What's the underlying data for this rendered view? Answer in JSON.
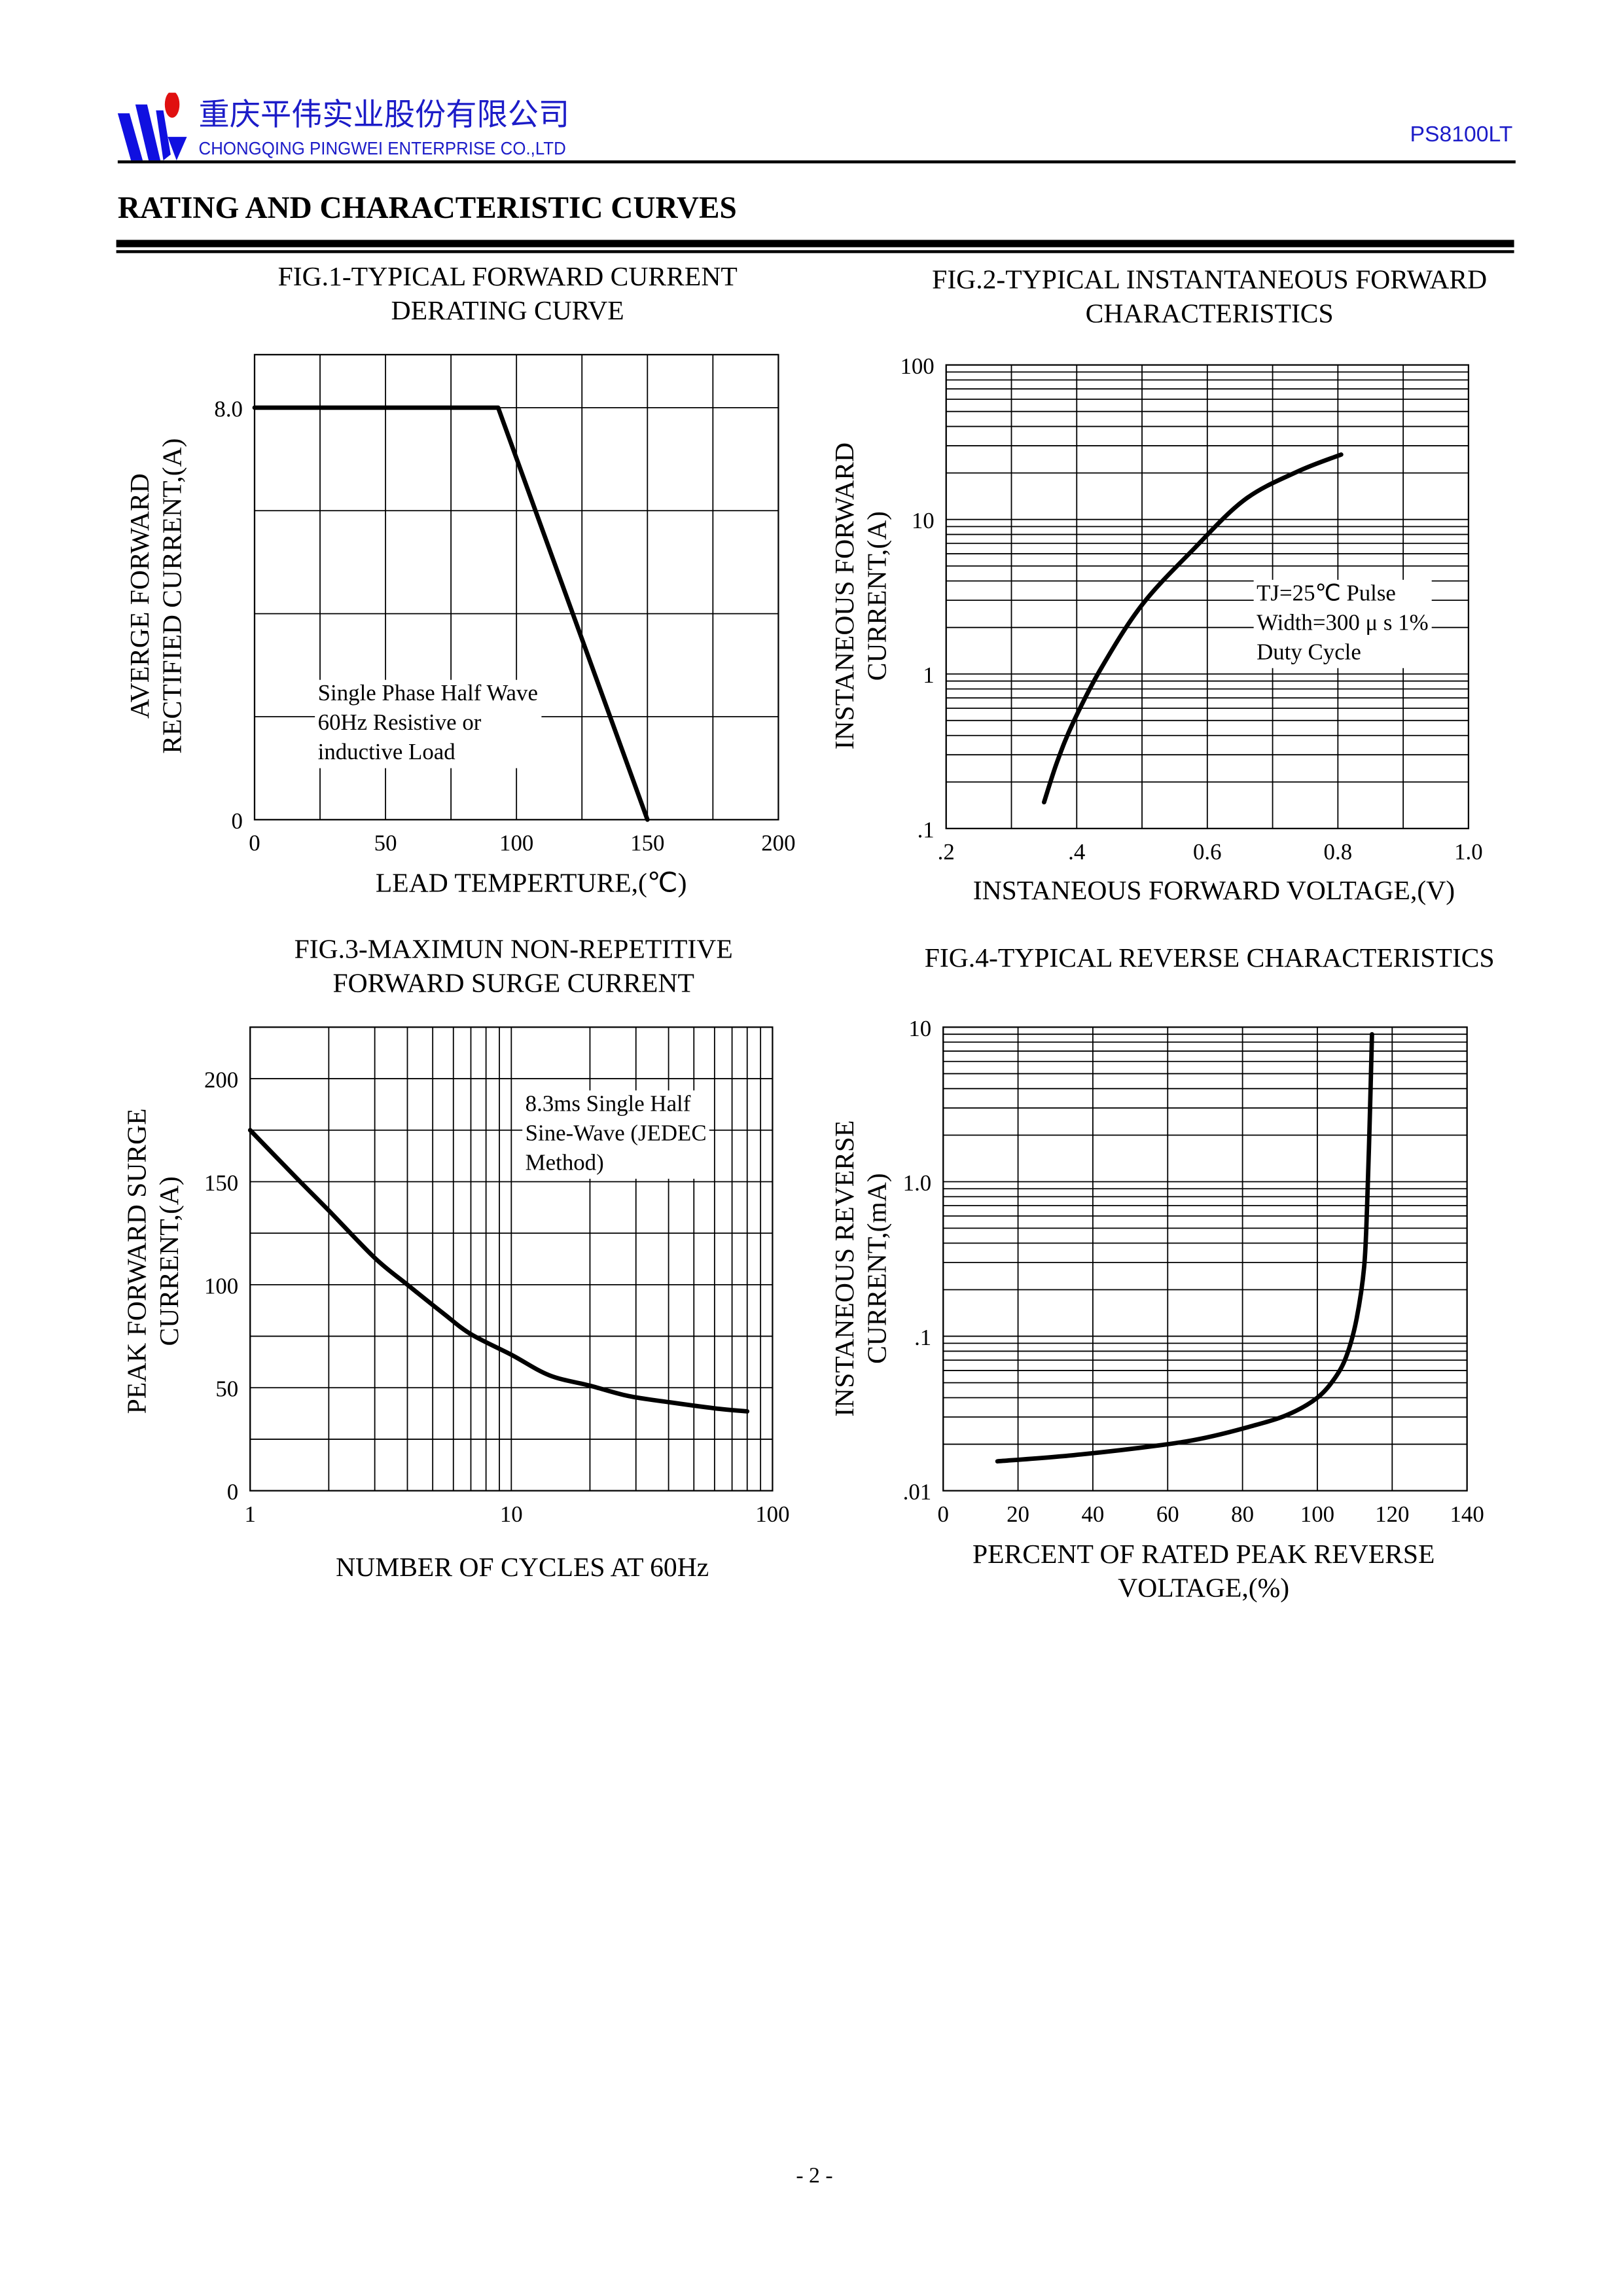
{
  "header": {
    "company_cn": "重庆平伟实业股份有限公司",
    "company_en": "CHONGQING PINGWEI ENTERPRISE CO.,LTD",
    "part_number": "PS8100LT",
    "colors": {
      "brand_blue": "#1c1cc8",
      "logo_red": "#e01010"
    }
  },
  "heading": "RATING AND CHARACTERISTIC CURVES",
  "footer": {
    "page": "- 2 -"
  },
  "chart_data": [
    {
      "type": "line",
      "title": [
        "FIG.1-TYPICAL FORWARD CURRENT",
        "DERATING CURVE"
      ],
      "xlabel": [
        "LEAD TEMPERTURE,(℃)"
      ],
      "ylabel": [
        "AVERGE FORWARD",
        "RECTIFIED CURRENT,(A)"
      ],
      "xscale": "linear",
      "yscale": "linear",
      "xlim": [
        0,
        200
      ],
      "ylim": [
        0,
        9.03
      ],
      "xgrid_step": 25,
      "ygrid_step": 2,
      "grid": true,
      "xticks": [
        {
          "v": 0,
          "label": "0"
        },
        {
          "v": 50,
          "label": "50"
        },
        {
          "v": 100,
          "label": "100"
        },
        {
          "v": 150,
          "label": "150"
        },
        {
          "v": 200,
          "label": "200"
        }
      ],
      "yticks": [
        {
          "v": 8,
          "label": "8.0"
        },
        {
          "v": 0,
          "label": "0"
        }
      ],
      "annotation": [
        "Single Phase Half Wave",
        "60Hz Resistive or",
        "inductive Load"
      ],
      "series": [
        {
          "name": "derating",
          "x": [
            0,
            93,
            150
          ],
          "y": [
            8.0,
            8.0,
            0
          ]
        }
      ]
    },
    {
      "type": "line",
      "title": [
        "FIG.2-TYPICAL INSTANTANEOUS FORWARD",
        "CHARACTERISTICS"
      ],
      "xlabel": [
        "INSTANEOUS FORWARD VOLTAGE,(V)"
      ],
      "ylabel": [
        "INSTANEOUS FORWARD",
        "CURRENT,(A)"
      ],
      "xscale": "linear",
      "yscale": "log",
      "xlim": [
        0.2,
        1.0
      ],
      "ylim": [
        0.1,
        100
      ],
      "xgrid_step": 0.1,
      "grid": true,
      "xticks": [
        {
          "v": 0.2,
          "label": ".2"
        },
        {
          "v": 0.4,
          "label": ".4"
        },
        {
          "v": 0.6,
          "label": "0.6"
        },
        {
          "v": 0.8,
          "label": "0.8"
        },
        {
          "v": 1.0,
          "label": "1.0"
        }
      ],
      "yticks": [
        {
          "v": 100,
          "label": "100"
        },
        {
          "v": 10,
          "label": "10"
        },
        {
          "v": 1,
          "label": "1"
        },
        {
          "v": 0.1,
          "label": ".1"
        }
      ],
      "annotation": [
        "TJ=25℃ Pulse",
        "Width=300 μ s 1%",
        "Duty Cycle"
      ],
      "series": [
        {
          "name": "forward",
          "x": [
            0.35,
            0.37,
            0.395,
            0.438,
            0.5,
            0.577,
            0.657,
            0.738,
            0.805
          ],
          "y": [
            0.148,
            0.27,
            0.49,
            1.1,
            2.8,
            6.3,
            13.4,
            20.4,
            26.3
          ]
        }
      ]
    },
    {
      "type": "line",
      "title": [
        "FIG.3-MAXIMUN NON-REPETITIVE",
        "FORWARD SURGE CURRENT"
      ],
      "xlabel": [
        "NUMBER OF CYCLES AT 60Hz"
      ],
      "ylabel": [
        "PEAK FORWARD SURGE",
        "CURRENT,(A)"
      ],
      "xscale": "log",
      "yscale": "linear",
      "xlim": [
        1,
        100
      ],
      "ylim": [
        0,
        225
      ],
      "ygrid_step": 25,
      "grid": true,
      "xticks": [
        {
          "v": 1,
          "label": "1"
        },
        {
          "v": 10,
          "label": "10"
        },
        {
          "v": 100,
          "label": "100"
        }
      ],
      "yticks": [
        {
          "v": 200,
          "label": "200"
        },
        {
          "v": 150,
          "label": "150"
        },
        {
          "v": 100,
          "label": "100"
        },
        {
          "v": 50,
          "label": "50"
        },
        {
          "v": 0,
          "label": "0"
        }
      ],
      "annotation": [
        "8.3ms Single Half",
        "Sine-Wave (JEDEC",
        "Method)"
      ],
      "series": [
        {
          "name": "surge",
          "x": [
            1,
            1.5,
            2,
            3,
            4,
            5.5,
            7,
            10,
            14,
            20,
            28,
            40,
            60,
            80
          ],
          "y": [
            175,
            152,
            136,
            113,
            100,
            86,
            76,
            66,
            56,
            51,
            46,
            43,
            40,
            38.5
          ]
        }
      ]
    },
    {
      "type": "line",
      "title": [
        "FIG.4-TYPICAL REVERSE CHARACTERISTICS"
      ],
      "xlabel": [
        "PERCENT OF RATED PEAK REVERSE",
        "VOLTAGE,(%)"
      ],
      "ylabel": [
        "INSTANEOUS REVERSE",
        "CURRENT,(mA)"
      ],
      "xscale": "linear",
      "yscale": "log",
      "xlim": [
        0,
        140
      ],
      "ylim": [
        0.01,
        10
      ],
      "xgrid_step": 20,
      "grid": true,
      "xticks": [
        {
          "v": 0,
          "label": "0"
        },
        {
          "v": 20,
          "label": "20"
        },
        {
          "v": 40,
          "label": "40"
        },
        {
          "v": 60,
          "label": "60"
        },
        {
          "v": 80,
          "label": "80"
        },
        {
          "v": 100,
          "label": "100"
        },
        {
          "v": 120,
          "label": "120"
        },
        {
          "v": 140,
          "label": "140"
        }
      ],
      "yticks": [
        {
          "v": 10,
          "label": "10"
        },
        {
          "v": 1,
          "label": "1.0"
        },
        {
          "v": 0.1,
          "label": ".1"
        },
        {
          "v": 0.01,
          "label": ".01"
        }
      ],
      "series": [
        {
          "name": "reverse",
          "x": [
            14.5,
            35,
            58,
            70,
            82,
            92,
            100,
            105,
            108,
            110.5,
            112.5,
            113.3,
            114,
            114.6
          ],
          "y": [
            0.0155,
            0.017,
            0.0197,
            0.022,
            0.026,
            0.031,
            0.04,
            0.055,
            0.077,
            0.13,
            0.28,
            0.7,
            2.5,
            9
          ]
        }
      ]
    }
  ]
}
